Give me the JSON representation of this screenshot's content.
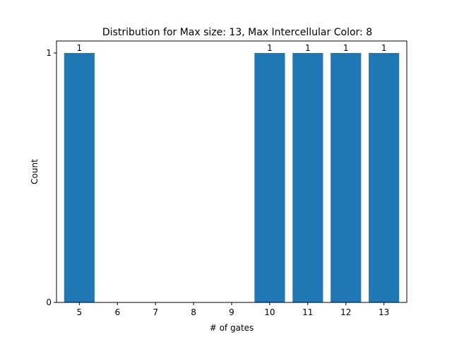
{
  "chart_data": {
    "type": "bar",
    "title": "Distribution for Max size: 13, Max Intercellular Color: 8",
    "xlabel": "# of gates",
    "ylabel": "Count",
    "x_ticks": [
      "5",
      "6",
      "7",
      "8",
      "9",
      "10",
      "11",
      "12",
      "13"
    ],
    "y_ticks": [
      "0",
      "1"
    ],
    "xlim": [
      4.4,
      13.6
    ],
    "ylim": [
      0,
      1
    ],
    "categories": [
      5,
      10,
      11,
      12,
      13
    ],
    "values": [
      1,
      1,
      1,
      1,
      1
    ],
    "data_labels": [
      "1",
      "1",
      "1",
      "1",
      "1"
    ],
    "bar_width": 0.8,
    "bar_color": "#1f77b4",
    "grid": false,
    "legend": "none"
  }
}
